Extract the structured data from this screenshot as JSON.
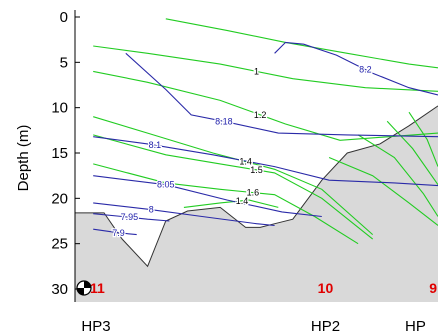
{
  "chart_data": {
    "type": "line",
    "title": "",
    "xlabel": "",
    "ylabel": "Depth (m)",
    "ylim": [
      0,
      32
    ],
    "xlim": [
      0,
      100
    ],
    "y_reversed": true,
    "yticks": [
      0,
      5,
      10,
      15,
      20,
      25,
      30
    ],
    "grid": false,
    "legend": "none",
    "colors": {
      "seabed_fill": "#d9d9d9",
      "seabed_line": "#333333",
      "green_contours": "#22cc22",
      "blue_contours": "#2a2aa8",
      "green_labels": "#000000",
      "blue_labels": "#1e1eaa",
      "station_labels": "#e00000"
    },
    "seabed": {
      "x": [
        0,
        8,
        13,
        20,
        25,
        31,
        40,
        47,
        51,
        56,
        60,
        68,
        75,
        84,
        92,
        100
      ],
      "y": [
        21.6,
        21.6,
        24.5,
        27.5,
        22.5,
        21.4,
        21.0,
        23.2,
        23.2,
        22.7,
        22.3,
        18.0,
        15.0,
        14.0,
        12.0,
        9.8
      ]
    },
    "green_contours": [
      {
        "label": "1",
        "x": [
          5,
          20,
          40,
          60,
          80,
          100
        ],
        "y": [
          3.2,
          4.0,
          5.2,
          6.8,
          7.8,
          8.2
        ],
        "label_x": 50
      },
      {
        "label": "1.2",
        "x": [
          5,
          20,
          40,
          58,
          73,
          100
        ],
        "y": [
          6.0,
          7.2,
          9.2,
          11.8,
          13.6,
          12.8
        ],
        "label_x": 51
      },
      {
        "label": "1.4",
        "x": [
          5,
          20,
          38,
          55,
          68,
          82
        ],
        "y": [
          11.0,
          12.8,
          15.0,
          16.8,
          19.0,
          24.0
        ],
        "label_x": 47
      },
      {
        "label": "1.5",
        "x": [
          5,
          25,
          40,
          55,
          68,
          82
        ],
        "y": [
          13.0,
          15.2,
          16.2,
          17.2,
          20.0,
          24.5
        ],
        "label_x": 50
      },
      {
        "label": "1.6",
        "x": [
          5,
          25,
          40,
          55,
          66,
          78
        ],
        "y": [
          16.2,
          18.3,
          19.0,
          19.6,
          22.0,
          25.0
        ],
        "label_x": 49
      },
      {
        "label": "1.4",
        "x": [
          30,
          40,
          48,
          56
        ],
        "y": [
          21.0,
          20.5,
          20.2,
          21.0
        ],
        "label_x": 46
      },
      {
        "label": "",
        "x": [
          25,
          42,
          58,
          75,
          92,
          100
        ],
        "y": [
          0.2,
          1.5,
          2.8,
          4.0,
          5.2,
          5.6
        ],
        "label_x": 0
      },
      {
        "label": "",
        "x": [
          70,
          82,
          92,
          100
        ],
        "y": [
          15.5,
          17.5,
          20.5,
          23.0
        ],
        "label_x": 0
      },
      {
        "label": "",
        "x": [
          78,
          88,
          96,
          100
        ],
        "y": [
          13.0,
          15.5,
          19.5,
          22.0
        ],
        "label_x": 0
      },
      {
        "label": "",
        "x": [
          86,
          93,
          100
        ],
        "y": [
          11.5,
          14.5,
          18.5
        ],
        "label_x": 0
      },
      {
        "label": "",
        "x": [
          92,
          97,
          100
        ],
        "y": [
          10.5,
          13.5,
          16.5
        ],
        "label_x": 0
      }
    ],
    "blue_contours": [
      {
        "label": "8.2",
        "x": [
          55,
          58,
          63,
          72,
          82,
          92,
          100
        ],
        "y": [
          4.0,
          2.8,
          3.0,
          4.2,
          6.2,
          7.8,
          8.6
        ],
        "label_x": 80
      },
      {
        "label": "8.18",
        "x": [
          14,
          25,
          32,
          41,
          56,
          75,
          100
        ],
        "y": [
          4.0,
          8.0,
          10.8,
          11.5,
          12.8,
          13.0,
          13.2
        ],
        "label_x": 41
      },
      {
        "label": "8.1",
        "x": [
          5,
          20,
          38,
          55,
          70,
          88,
          100
        ],
        "y": [
          13.2,
          14.0,
          15.2,
          16.5,
          18.0,
          18.3,
          18.6
        ],
        "label_x": 22
      },
      {
        "label": "8.05",
        "x": [
          5,
          25,
          42,
          57,
          68
        ],
        "y": [
          17.5,
          18.5,
          20.2,
          21.5,
          22.0
        ],
        "label_x": 25
      },
      {
        "label": "8",
        "x": [
          5,
          20,
          35,
          50,
          55
        ],
        "y": [
          20.5,
          21.2,
          22.0,
          22.8,
          23.0
        ],
        "label_x": 21
      },
      {
        "label": "7.95",
        "x": [
          5,
          13,
          20,
          26
        ],
        "y": [
          21.7,
          22.0,
          22.3,
          22.5
        ],
        "label_x": 15
      },
      {
        "label": "7.9",
        "x": [
          5,
          12,
          17
        ],
        "y": [
          23.4,
          23.8,
          24.0
        ],
        "label_x": 12
      }
    ],
    "stations": [
      {
        "number": "11",
        "x": 0,
        "site": "HP3"
      },
      {
        "number": "10",
        "x": 69,
        "site": "HP2"
      },
      {
        "number": "9",
        "x": 100,
        "site": "HP"
      }
    ]
  }
}
